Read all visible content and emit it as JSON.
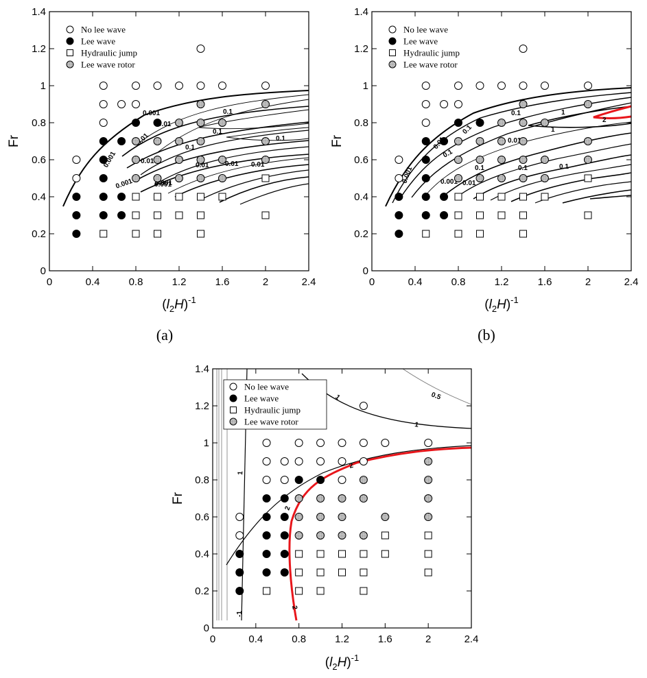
{
  "figure": {
    "panel_labels": [
      "(a)",
      "(b)"
    ],
    "colors": {
      "threshold_contour": "#e8161b",
      "contour": "#000000",
      "rotor_fill": "#bdbdbd"
    },
    "contour_labels": {
      "a": [
        "0.001",
        "0.01",
        "0.1",
        "0.1",
        "0.1",
        "0.001",
        "0.01",
        "0.01",
        "0.1",
        "0.01",
        "0.001",
        "0.001",
        "0.01",
        "0.01",
        "0.001"
      ],
      "b": [
        "0.001",
        "0.01",
        "0.1",
        "1",
        "1",
        "2",
        "0.1",
        "0.01",
        "0.1",
        "0.1",
        "0.1",
        "0.1",
        "0.01",
        "0.001"
      ],
      "c": [
        "1",
        "1",
        "0.5",
        "1",
        "2",
        "2",
        "2",
        "-1",
        "1"
      ]
    }
  },
  "chart_data": [
    {
      "id": "a",
      "type": "scatter",
      "xlabel": "(l2H)-1",
      "xlabel_parts": {
        "open": "(",
        "l": "l",
        "sub": "2",
        "h": "H",
        "close": ")",
        "sup": "-1"
      },
      "ylabel": "Fr",
      "xlim": [
        0,
        2.4
      ],
      "ylim": [
        0,
        1.4
      ],
      "xticks": [
        "0",
        "0.4",
        "0.8",
        "1.2",
        "1.6",
        "2",
        "2.4"
      ],
      "yticks": [
        "0",
        "0.2",
        "0.4",
        "0.6",
        "0.8",
        "1",
        "1.2",
        "1.4"
      ],
      "legend": [
        "No lee wave",
        "Lee wave",
        "Hydraulic jump",
        "Lee wave rotor"
      ],
      "legend_position": "top-left",
      "grid": false,
      "series": [
        {
          "name": "No lee wave",
          "marker": "open-circle",
          "points": [
            [
              1.4,
              1.2
            ],
            [
              0.5,
              1
            ],
            [
              0.8,
              1
            ],
            [
              1,
              1
            ],
            [
              1.2,
              1
            ],
            [
              1.4,
              1
            ],
            [
              1.6,
              1
            ],
            [
              2,
              1
            ],
            [
              0.5,
              0.9
            ],
            [
              0.667,
              0.9
            ],
            [
              0.8,
              0.9
            ],
            [
              0.5,
              0.8
            ],
            [
              0.25,
              0.6
            ],
            [
              0.25,
              0.5
            ]
          ]
        },
        {
          "name": "Lee wave",
          "marker": "filled-circle",
          "points": [
            [
              0.8,
              0.8
            ],
            [
              1,
              0.8
            ],
            [
              0.5,
              0.7
            ],
            [
              0.667,
              0.7
            ],
            [
              0.5,
              0.6
            ],
            [
              0.5,
              0.5
            ],
            [
              0.25,
              0.4
            ],
            [
              0.5,
              0.4
            ],
            [
              0.667,
              0.4
            ],
            [
              0.25,
              0.3
            ],
            [
              0.5,
              0.3
            ],
            [
              0.667,
              0.3
            ],
            [
              0.25,
              0.2
            ]
          ]
        },
        {
          "name": "Hydraulic jump",
          "marker": "open-square",
          "points": [
            [
              0.8,
              0.4
            ],
            [
              1,
              0.4
            ],
            [
              1.2,
              0.4
            ],
            [
              1.4,
              0.4
            ],
            [
              1.6,
              0.4
            ],
            [
              2,
              0.5
            ],
            [
              0.8,
              0.3
            ],
            [
              1,
              0.3
            ],
            [
              1.2,
              0.3
            ],
            [
              1.4,
              0.3
            ],
            [
              2,
              0.3
            ],
            [
              0.5,
              0.2
            ],
            [
              0.8,
              0.2
            ],
            [
              1,
              0.2
            ],
            [
              1.4,
              0.2
            ]
          ]
        },
        {
          "name": "Lee wave rotor",
          "marker": "hatched-circle",
          "points": [
            [
              1.4,
              0.9
            ],
            [
              2,
              0.9
            ],
            [
              1.2,
              0.8
            ],
            [
              1.4,
              0.8
            ],
            [
              1.6,
              0.8
            ],
            [
              0.8,
              0.7
            ],
            [
              1,
              0.7
            ],
            [
              1.2,
              0.7
            ],
            [
              1.4,
              0.7
            ],
            [
              2,
              0.7
            ],
            [
              0.8,
              0.6
            ],
            [
              1,
              0.6
            ],
            [
              1.2,
              0.6
            ],
            [
              1.4,
              0.6
            ],
            [
              1.6,
              0.6
            ],
            [
              2,
              0.6
            ],
            [
              0.8,
              0.5
            ],
            [
              1,
              0.5
            ],
            [
              1.2,
              0.5
            ],
            [
              1.4,
              0.5
            ],
            [
              1.6,
              0.5
            ]
          ]
        }
      ]
    },
    {
      "id": "b",
      "type": "scatter",
      "xlabel": "(l2H)-1",
      "xlabel_parts": {
        "open": "(",
        "l": "l",
        "sub": "2",
        "h": "H",
        "close": ")",
        "sup": "-1"
      },
      "ylabel": "Fr",
      "xlim": [
        0,
        2.4
      ],
      "ylim": [
        0,
        1.4
      ],
      "xticks": [
        "0",
        "0.4",
        "0.8",
        "1.2",
        "1.6",
        "2",
        "2.4"
      ],
      "yticks": [
        "0",
        "0.2",
        "0.4",
        "0.6",
        "0.8",
        "1",
        "1.2",
        "1.4"
      ],
      "legend": [
        "No lee wave",
        "Lee wave",
        "Hydraulic jump",
        "Lee wave rotor"
      ],
      "legend_position": "top-left",
      "grid": false,
      "series": [
        {
          "name": "No lee wave",
          "marker": "open-circle",
          "points": [
            [
              1.4,
              1.2
            ],
            [
              0.5,
              1
            ],
            [
              0.8,
              1
            ],
            [
              1,
              1
            ],
            [
              1.2,
              1
            ],
            [
              1.4,
              1
            ],
            [
              1.6,
              1
            ],
            [
              2,
              1
            ],
            [
              0.5,
              0.9
            ],
            [
              0.667,
              0.9
            ],
            [
              0.8,
              0.9
            ],
            [
              0.5,
              0.8
            ],
            [
              0.25,
              0.6
            ],
            [
              0.25,
              0.5
            ]
          ]
        },
        {
          "name": "Lee wave",
          "marker": "filled-circle",
          "points": [
            [
              0.8,
              0.8
            ],
            [
              1,
              0.8
            ],
            [
              0.5,
              0.7
            ],
            [
              0.667,
              0.7
            ],
            [
              0.5,
              0.6
            ],
            [
              0.5,
              0.5
            ],
            [
              0.25,
              0.4
            ],
            [
              0.5,
              0.4
            ],
            [
              0.667,
              0.4
            ],
            [
              0.25,
              0.3
            ],
            [
              0.5,
              0.3
            ],
            [
              0.667,
              0.3
            ],
            [
              0.25,
              0.2
            ]
          ]
        },
        {
          "name": "Hydraulic jump",
          "marker": "open-square",
          "points": [
            [
              0.8,
              0.4
            ],
            [
              1,
              0.4
            ],
            [
              1.2,
              0.4
            ],
            [
              1.4,
              0.4
            ],
            [
              1.6,
              0.4
            ],
            [
              2,
              0.5
            ],
            [
              0.8,
              0.3
            ],
            [
              1,
              0.3
            ],
            [
              1.2,
              0.3
            ],
            [
              1.4,
              0.3
            ],
            [
              2,
              0.3
            ],
            [
              0.5,
              0.2
            ],
            [
              0.8,
              0.2
            ],
            [
              1,
              0.2
            ],
            [
              1.4,
              0.2
            ]
          ]
        },
        {
          "name": "Lee wave rotor",
          "marker": "hatched-circle",
          "points": [
            [
              1.4,
              0.9
            ],
            [
              2,
              0.9
            ],
            [
              1.2,
              0.8
            ],
            [
              1.4,
              0.8
            ],
            [
              1.6,
              0.8
            ],
            [
              0.8,
              0.7
            ],
            [
              1,
              0.7
            ],
            [
              1.2,
              0.7
            ],
            [
              1.4,
              0.7
            ],
            [
              2,
              0.7
            ],
            [
              0.8,
              0.6
            ],
            [
              1,
              0.6
            ],
            [
              1.2,
              0.6
            ],
            [
              1.4,
              0.6
            ],
            [
              1.6,
              0.6
            ],
            [
              2,
              0.6
            ],
            [
              0.8,
              0.5
            ],
            [
              1,
              0.5
            ],
            [
              1.2,
              0.5
            ],
            [
              1.4,
              0.5
            ],
            [
              1.6,
              0.5
            ]
          ]
        }
      ]
    },
    {
      "id": "c",
      "type": "scatter",
      "xlabel": "(l2H)-1",
      "xlabel_parts": {
        "open": "(",
        "l": "l",
        "sub": "2",
        "h": "H",
        "close": ")",
        "sup": "-1"
      },
      "ylabel": "Fr",
      "xlim": [
        0,
        2.4
      ],
      "ylim": [
        0,
        1.4
      ],
      "xticks": [
        "0",
        "0.4",
        "0.8",
        "1.2",
        "1.6",
        "2",
        "2.4"
      ],
      "yticks": [
        "0",
        "0.2",
        "0.4",
        "0.6",
        "0.8",
        "1",
        "1.2",
        "1.4"
      ],
      "legend": [
        "No lee wave",
        "Lee wave",
        "Hydraulic jump",
        "Lee wave rotor"
      ],
      "legend_position": "top-left",
      "grid": false,
      "series": [
        {
          "name": "No lee wave",
          "marker": "open-circle",
          "points": [
            [
              1.4,
              1.2
            ],
            [
              0.5,
              1
            ],
            [
              0.8,
              1
            ],
            [
              1,
              1
            ],
            [
              1.2,
              1
            ],
            [
              1.4,
              1
            ],
            [
              1.6,
              1
            ],
            [
              2,
              1
            ],
            [
              0.5,
              0.9
            ],
            [
              0.667,
              0.9
            ],
            [
              0.8,
              0.9
            ],
            [
              1,
              0.9
            ],
            [
              1.2,
              0.9
            ],
            [
              1.4,
              0.9
            ],
            [
              0.5,
              0.8
            ],
            [
              0.667,
              0.8
            ],
            [
              1.2,
              0.8
            ],
            [
              0.25,
              0.6
            ],
            [
              0.25,
              0.5
            ]
          ]
        },
        {
          "name": "Lee wave",
          "marker": "filled-circle",
          "points": [
            [
              0.8,
              0.8
            ],
            [
              1,
              0.8
            ],
            [
              0.5,
              0.7
            ],
            [
              0.667,
              0.7
            ],
            [
              0.5,
              0.6
            ],
            [
              0.667,
              0.6
            ],
            [
              0.5,
              0.5
            ],
            [
              0.667,
              0.5
            ],
            [
              0.25,
              0.4
            ],
            [
              0.5,
              0.4
            ],
            [
              0.667,
              0.4
            ],
            [
              0.25,
              0.3
            ],
            [
              0.5,
              0.3
            ],
            [
              0.667,
              0.3
            ],
            [
              0.25,
              0.2
            ]
          ]
        },
        {
          "name": "Hydraulic jump",
          "marker": "open-square",
          "points": [
            [
              1.6,
              0.5
            ],
            [
              2,
              0.5
            ],
            [
              0.8,
              0.4
            ],
            [
              1,
              0.4
            ],
            [
              1.2,
              0.4
            ],
            [
              1.4,
              0.4
            ],
            [
              1.6,
              0.4
            ],
            [
              2,
              0.4
            ],
            [
              0.8,
              0.3
            ],
            [
              1,
              0.3
            ],
            [
              1.2,
              0.3
            ],
            [
              1.4,
              0.3
            ],
            [
              2,
              0.3
            ],
            [
              0.5,
              0.2
            ],
            [
              0.8,
              0.2
            ],
            [
              1,
              0.2
            ],
            [
              1.4,
              0.2
            ]
          ]
        },
        {
          "name": "Lee wave rotor",
          "marker": "hatched-circle",
          "points": [
            [
              1.4,
              0.8
            ],
            [
              2,
              0.9
            ],
            [
              2,
              0.8
            ],
            [
              0.8,
              0.7
            ],
            [
              1,
              0.7
            ],
            [
              1.2,
              0.7
            ],
            [
              1.4,
              0.7
            ],
            [
              2,
              0.7
            ],
            [
              0.8,
              0.6
            ],
            [
              1,
              0.6
            ],
            [
              1.2,
              0.6
            ],
            [
              1.6,
              0.6
            ],
            [
              2,
              0.6
            ],
            [
              0.8,
              0.5
            ],
            [
              1,
              0.5
            ],
            [
              1.2,
              0.5
            ],
            [
              1.4,
              0.5
            ]
          ]
        }
      ]
    }
  ]
}
